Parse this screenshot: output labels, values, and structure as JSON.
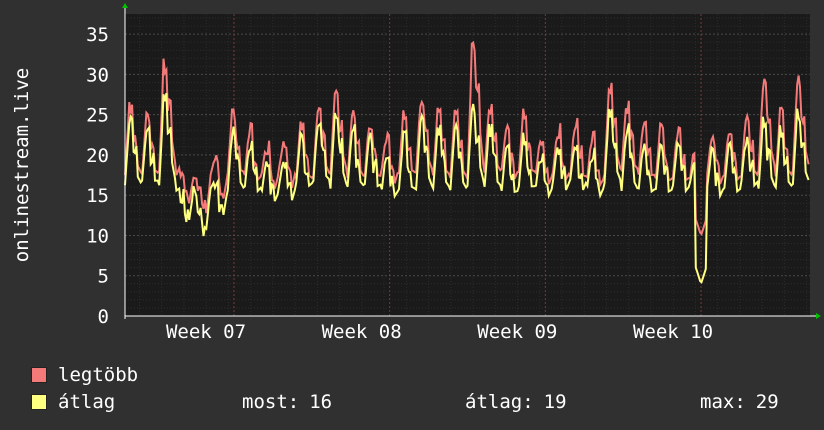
{
  "chart_data": {
    "type": "line",
    "ylabel": "onlinestream.live",
    "ylim": [
      0,
      37.5
    ],
    "yticks": [
      0,
      5,
      10,
      15,
      20,
      25,
      30,
      35
    ],
    "x_range_weeks": [
      6.3,
      10.7
    ],
    "xticks": [
      {
        "label": "Week 07",
        "at": 7
      },
      {
        "label": "Week 08",
        "at": 8
      },
      {
        "label": "Week 09",
        "at": 9
      },
      {
        "label": "Week 10",
        "at": 10
      }
    ],
    "grid": true,
    "series": [
      {
        "name": "legtöbb",
        "color": "#f47a7a",
        "daily_peaks": [
          27,
          26,
          32,
          19,
          17,
          20,
          26,
          24,
          22,
          22,
          25,
          27,
          29,
          26,
          25,
          23,
          26,
          28,
          26,
          26,
          34,
          27,
          24,
          26,
          23,
          24,
          25,
          23,
          29,
          27,
          25,
          24,
          24,
          22,
          23,
          24,
          26,
          30,
          26,
          30
        ]
      },
      {
        "name": "átlag",
        "color": "#ffff80",
        "daily_peaks": [
          25,
          24,
          28,
          16,
          14,
          17,
          24,
          22,
          20,
          20,
          23,
          25,
          26,
          24,
          23,
          21,
          23,
          25,
          24,
          24,
          27,
          24,
          22,
          23,
          21,
          22,
          22,
          21,
          26,
          24,
          22,
          22,
          22,
          20,
          21,
          22,
          23,
          25,
          24,
          26
        ]
      }
    ],
    "dip": {
      "week": 10.0,
      "max": 10,
      "avg": 4
    }
  },
  "stats": {
    "now_label": "most:",
    "now_value": "16",
    "avg_label": "átlag:",
    "avg_value": "19",
    "max_label": "max:",
    "max_value": "29"
  },
  "colors": {
    "background": "#303030",
    "plot_bg": "#1a1a1a",
    "grid": "#4a4a4a",
    "week_grid": "#7a3a3a",
    "axis": "#ffffff",
    "arrow": "#00c000"
  }
}
